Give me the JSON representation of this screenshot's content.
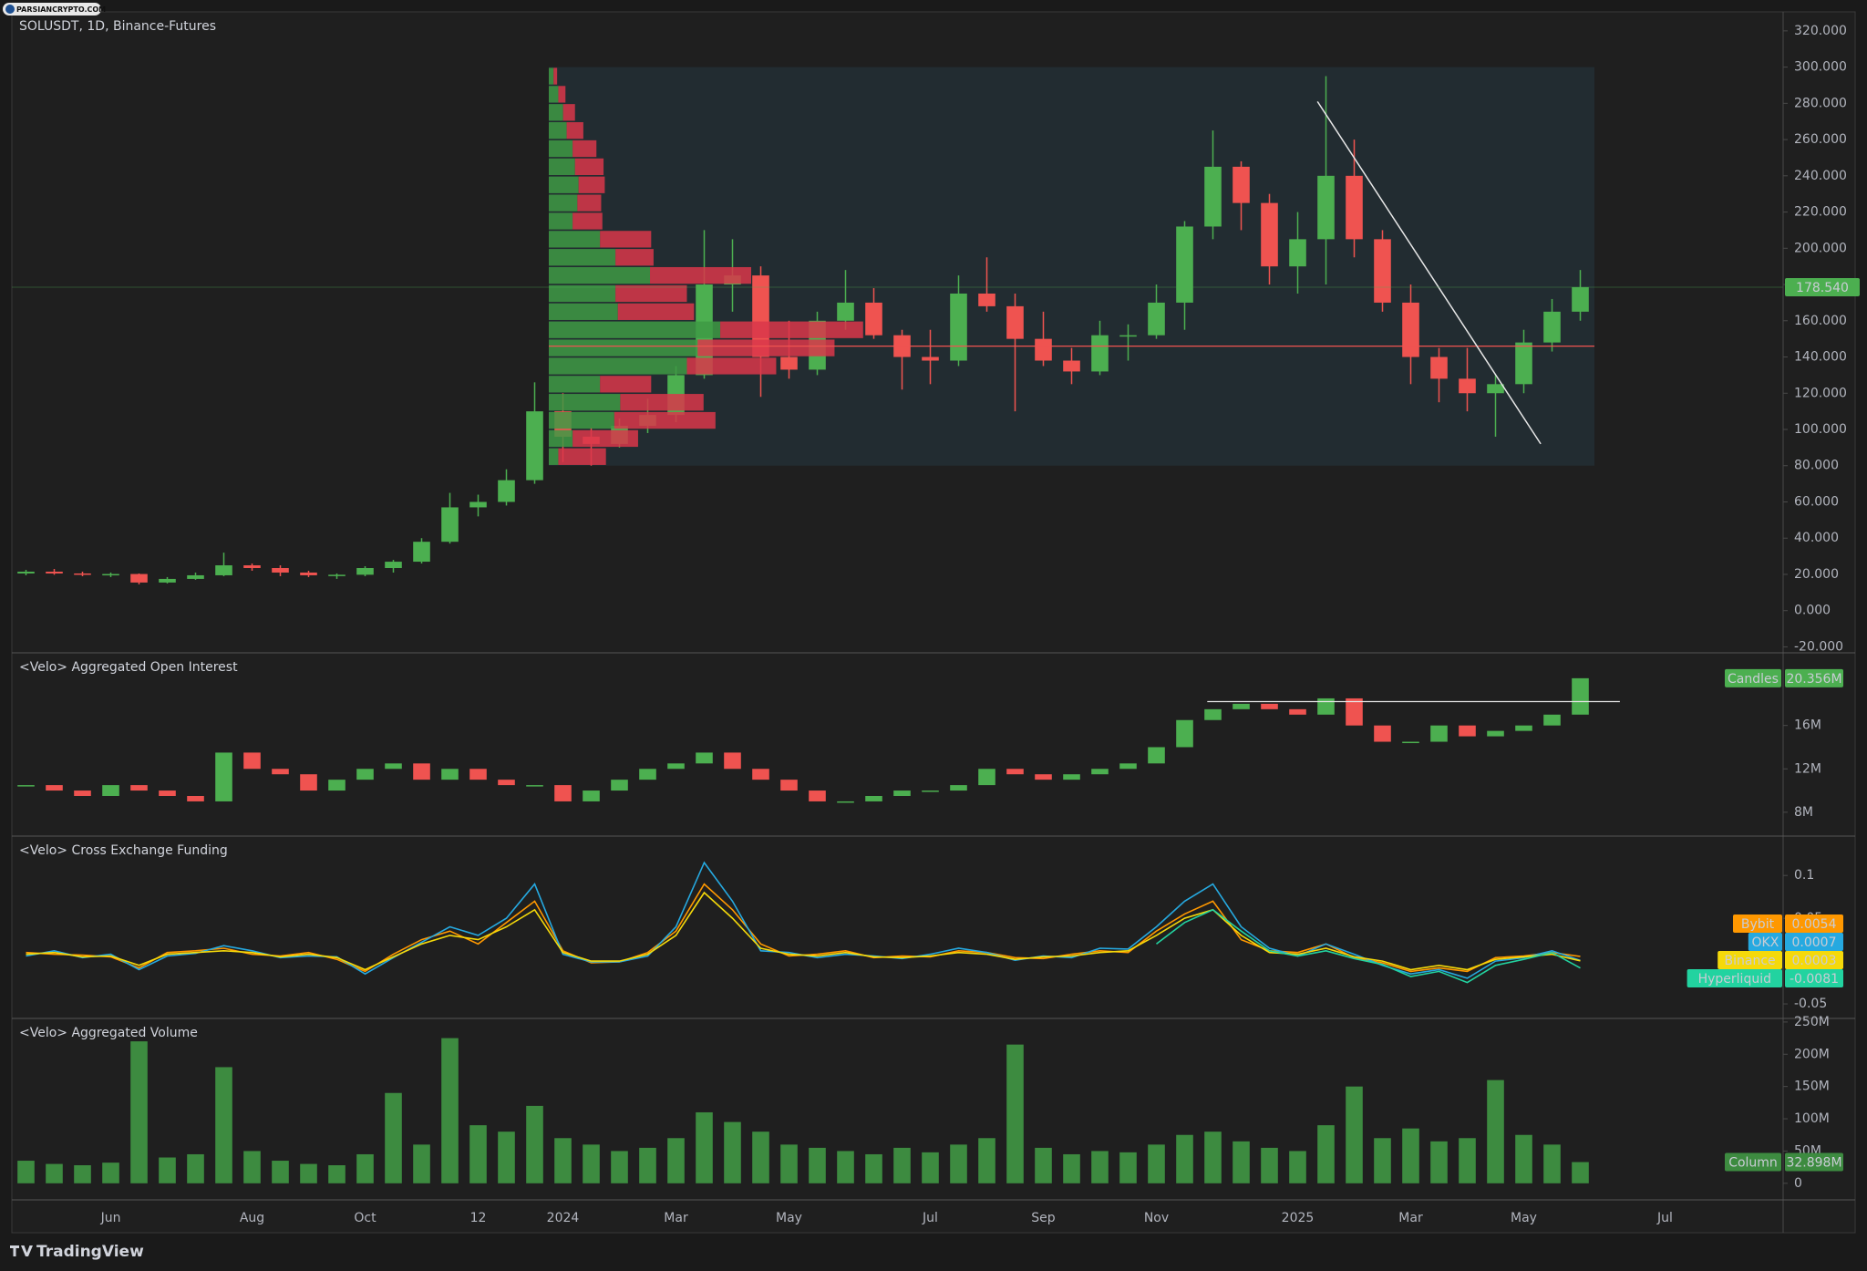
{
  "watermark": "PARSIANCRYPTO.COM",
  "footer": "TradingView",
  "chart_data": [
    {
      "type": "candlestick",
      "title": "SOLUSDT, 1D, Binance-Futures",
      "categories": [
        null,
        null,
        null,
        "Jun",
        null,
        null,
        null,
        null,
        "Aug",
        null,
        null,
        null,
        "Oct",
        null,
        null,
        null,
        "12",
        null,
        null,
        "2024",
        null,
        null,
        null,
        "Mar",
        null,
        null,
        null,
        "May",
        null,
        null,
        null,
        null,
        "Jul",
        null,
        null,
        null,
        "Sep",
        null,
        null,
        null,
        "Nov",
        null,
        null,
        null,
        null,
        "2025",
        null,
        null,
        null,
        "Mar",
        null,
        null,
        null,
        "May",
        null,
        null,
        null,
        null,
        "Jul",
        null
      ],
      "open": [
        20.5,
        21.5,
        20.5,
        19.8,
        20.2,
        15.5,
        17.5,
        19.5,
        25,
        23.5,
        21,
        19.5,
        19.8,
        23.5,
        27,
        38,
        57,
        60,
        72,
        110,
        96,
        92,
        102,
        108,
        130,
        180,
        185,
        140,
        133,
        160,
        170,
        152,
        140,
        138,
        175,
        168,
        150,
        138,
        132,
        152,
        152,
        170,
        212,
        245,
        225,
        190,
        205,
        240,
        205,
        170,
        140,
        128,
        120,
        125,
        148,
        165,
        null,
        null,
        null,
        null
      ],
      "high": [
        22.5,
        23,
        21.5,
        21,
        20.5,
        18.5,
        21,
        32,
        26,
        25,
        22,
        20.5,
        24.5,
        28,
        40,
        65,
        64,
        78,
        126,
        120,
        101,
        106,
        117,
        135,
        210,
        205,
        190,
        160,
        165,
        188,
        178,
        155,
        155,
        185,
        195,
        175,
        165,
        145,
        160,
        158,
        180,
        215,
        265,
        248,
        230,
        220,
        295,
        260,
        210,
        180,
        145,
        145,
        130,
        155,
        172,
        188,
        null,
        null,
        null,
        null
      ],
      "low": [
        19.5,
        19.8,
        19,
        18.5,
        14.5,
        15,
        17,
        19,
        22,
        19,
        18.5,
        17.5,
        19,
        21,
        26,
        37,
        52,
        58,
        70,
        82,
        80,
        90,
        98,
        104,
        128,
        165,
        118,
        128,
        130,
        155,
        150,
        122,
        125,
        135,
        165,
        110,
        135,
        125,
        130,
        138,
        150,
        155,
        205,
        210,
        180,
        175,
        180,
        195,
        165,
        125,
        115,
        110,
        96,
        120,
        143,
        160,
        null,
        null,
        null,
        null
      ],
      "close": [
        21.5,
        20.5,
        19.8,
        20.2,
        15.5,
        17.5,
        19.5,
        25,
        23.5,
        21,
        19.5,
        19.8,
        23.5,
        27,
        38,
        57,
        60,
        72,
        110,
        96,
        92,
        102,
        108,
        130,
        180,
        185,
        140,
        133,
        160,
        170,
        152,
        140,
        138,
        175,
        168,
        150,
        138,
        132,
        152,
        152,
        170,
        212,
        245,
        225,
        190,
        205,
        240,
        205,
        170,
        140,
        128,
        120,
        125,
        148,
        165,
        178.54,
        null,
        null,
        null,
        null
      ],
      "color_up": "#4caf50",
      "color_down": "#ef5350",
      "last_label": "178.540",
      "ylim": [
        -23.3,
        330.5
      ],
      "yticks": [
        {
          "value": 320,
          "label": "320.000"
        },
        {
          "value": 300,
          "label": "300.000"
        },
        {
          "value": 280,
          "label": "280.000"
        },
        {
          "value": 260,
          "label": "260.000"
        },
        {
          "value": 240,
          "label": "240.000"
        },
        {
          "value": 220,
          "label": "220.000"
        },
        {
          "value": 200,
          "label": "200.000"
        },
        {
          "value": 180,
          "label": "180.000"
        },
        {
          "value": 160,
          "label": "160.000"
        },
        {
          "value": 140,
          "label": "140.000"
        },
        {
          "value": 120,
          "label": "120.000"
        },
        {
          "value": 100,
          "label": "100.000"
        },
        {
          "value": 80,
          "label": "80.000"
        },
        {
          "value": 60,
          "label": "60.000"
        },
        {
          "value": 40,
          "label": "40.000"
        },
        {
          "value": 20,
          "label": "20.000"
        },
        {
          "value": 0,
          "label": "0.000"
        },
        {
          "value": -20,
          "label": "-20.000"
        }
      ],
      "volume_profile": {
        "levels": [
          80,
          90,
          100,
          110,
          120,
          130,
          140,
          150,
          160,
          170,
          180,
          190,
          200,
          210,
          220,
          230,
          240,
          250,
          260,
          270,
          280,
          290
        ],
        "up": [
          8,
          20,
          55,
          60,
          43,
          116,
          125,
          144,
          58,
          56,
          85,
          56,
          43,
          20,
          24,
          25,
          22,
          20,
          15,
          12,
          8,
          4
        ],
        "down": [
          40,
          55,
          85,
          70,
          43,
          75,
          115,
          120,
          64,
          60,
          85,
          32,
          43,
          25,
          20,
          22,
          24,
          20,
          14,
          10,
          6,
          3
        ],
        "color_up": "#3e9a44",
        "color_down": "#d9374a",
        "poc": 146
      },
      "trendline": [
        281,
        92
      ]
    },
    {
      "type": "candlestick",
      "title": "<Velo> Aggregated Open Interest",
      "name": "Candles",
      "close": [
        10.5,
        10,
        9.5,
        10.5,
        10,
        9.5,
        9,
        13.5,
        12,
        11.5,
        10,
        11,
        12,
        12.5,
        11,
        12,
        11,
        10.5,
        10.5,
        9,
        10,
        11,
        12,
        12.5,
        13.5,
        12,
        11,
        10,
        9,
        9,
        9.5,
        10,
        10,
        10.5,
        12,
        11.5,
        11,
        11.5,
        12,
        12.5,
        14,
        16.5,
        17.5,
        18,
        17.5,
        17,
        18.5,
        16,
        14.5,
        14.5,
        16,
        15,
        15.5,
        16,
        17,
        20.356,
        null,
        null,
        null,
        null
      ],
      "color_up": "#4caf50",
      "color_down": "#ef5350",
      "last_label": "20.356M",
      "ylim": [
        5.8,
        22.7
      ],
      "yticks": [
        {
          "value": 16,
          "label": "16M"
        },
        {
          "value": 12,
          "label": "12M"
        },
        {
          "value": 8,
          "label": "8M"
        }
      ],
      "resistance": 18.2
    },
    {
      "type": "line",
      "title": "<Velo> Cross Exchange Funding",
      "ylim": [
        -0.067,
        0.146
      ],
      "yticks": [
        0.1,
        0.05,
        -0.05
      ],
      "series": [
        {
          "name": "Bybit",
          "color": "#ff9800",
          "last_label": "0.0054",
          "values": [
            0.01,
            0.008,
            0.007,
            0.005,
            -0.008,
            0.01,
            0.012,
            0.015,
            0.008,
            0.006,
            0.01,
            0.002,
            -0.012,
            0.008,
            0.025,
            0.035,
            0.02,
            0.045,
            0.07,
            0.012,
            -0.002,
            -0.001,
            0.01,
            0.035,
            0.09,
            0.06,
            0.02,
            0.006,
            0.008,
            0.012,
            0.004,
            0.006,
            0.005,
            0.012,
            0.01,
            0.004,
            0.003,
            0.008,
            0.012,
            0.01,
            0.035,
            0.055,
            0.07,
            0.025,
            0.012,
            0.01,
            0.02,
            0.004,
            -0.002,
            -0.012,
            -0.008,
            -0.012,
            0.004,
            0.006,
            0.01,
            0.0054,
            null,
            null,
            null,
            null
          ]
        },
        {
          "name": "OKX",
          "color": "#26a9e0",
          "last_label": "0.0007",
          "values": [
            0.006,
            0.012,
            0.004,
            0.008,
            -0.01,
            0.006,
            0.009,
            0.018,
            0.012,
            0.004,
            0.006,
            0.005,
            -0.015,
            0.004,
            0.022,
            0.04,
            0.03,
            0.05,
            0.09,
            0.008,
            -0.001,
            -0.001,
            0.006,
            0.04,
            0.115,
            0.07,
            0.012,
            0.01,
            0.004,
            0.008,
            0.006,
            0.003,
            0.008,
            0.015,
            0.01,
            0.001,
            0.006,
            0.004,
            0.015,
            0.014,
            0.04,
            0.07,
            0.09,
            0.04,
            0.015,
            0.006,
            0.02,
            0.008,
            -0.005,
            -0.015,
            -0.01,
            -0.02,
            0.0,
            0.004,
            0.012,
            0.0007,
            null,
            null,
            null,
            null
          ]
        },
        {
          "name": "Binance",
          "color": "#f5d90a",
          "last_label": "0.0003",
          "values": [
            0.008,
            0.01,
            0.005,
            0.006,
            -0.005,
            0.008,
            0.01,
            0.012,
            0.01,
            0.005,
            0.008,
            0.004,
            -0.01,
            0.005,
            0.02,
            0.03,
            0.025,
            0.04,
            0.06,
            0.01,
            0.0,
            0.0,
            0.008,
            0.03,
            0.08,
            0.05,
            0.015,
            0.008,
            0.006,
            0.01,
            0.005,
            0.004,
            0.006,
            0.01,
            0.008,
            0.002,
            0.005,
            0.006,
            0.01,
            0.012,
            0.03,
            0.05,
            0.06,
            0.03,
            0.01,
            0.008,
            0.015,
            0.005,
            0.0,
            -0.01,
            -0.005,
            -0.01,
            0.002,
            0.005,
            0.008,
            0.0003,
            null,
            null,
            null,
            null
          ]
        },
        {
          "name": "Hyperliquid",
          "color": "#22d3a0",
          "last_label": "-0.0081",
          "values": [
            null,
            null,
            null,
            null,
            null,
            null,
            null,
            null,
            null,
            null,
            null,
            null,
            null,
            null,
            null,
            null,
            null,
            null,
            null,
            null,
            null,
            null,
            null,
            null,
            null,
            null,
            null,
            null,
            null,
            null,
            null,
            null,
            null,
            null,
            null,
            null,
            null,
            null,
            null,
            null,
            0.02,
            0.045,
            0.06,
            0.035,
            0.012,
            0.006,
            0.012,
            0.003,
            -0.004,
            -0.018,
            -0.012,
            -0.025,
            -0.005,
            0.002,
            0.01,
            -0.0081,
            null,
            null,
            null,
            null
          ]
        }
      ]
    },
    {
      "type": "bar",
      "title": "<Velo> Aggregated Volume",
      "name": "Column",
      "color": "#3d8b40",
      "values": [
        35,
        30,
        28,
        32,
        220,
        40,
        45,
        180,
        50,
        35,
        30,
        28,
        45,
        140,
        60,
        225,
        90,
        80,
        120,
        70,
        60,
        50,
        55,
        70,
        110,
        95,
        80,
        60,
        55,
        50,
        45,
        55,
        48,
        60,
        70,
        215,
        55,
        45,
        50,
        48,
        60,
        75,
        80,
        65,
        55,
        50,
        90,
        150,
        70,
        85,
        65,
        70,
        160,
        75,
        60,
        32.898,
        null,
        null,
        null,
        null
      ],
      "last_label": "32.898M",
      "ylim": [
        -25.7,
        255.5
      ],
      "yticks": [
        {
          "value": 250,
          "label": "250M"
        },
        {
          "value": 200,
          "label": "200M"
        },
        {
          "value": 150,
          "label": "150M"
        },
        {
          "value": 100,
          "label": "100M"
        },
        {
          "value": 50,
          "label": "50M"
        },
        0
      ]
    }
  ]
}
